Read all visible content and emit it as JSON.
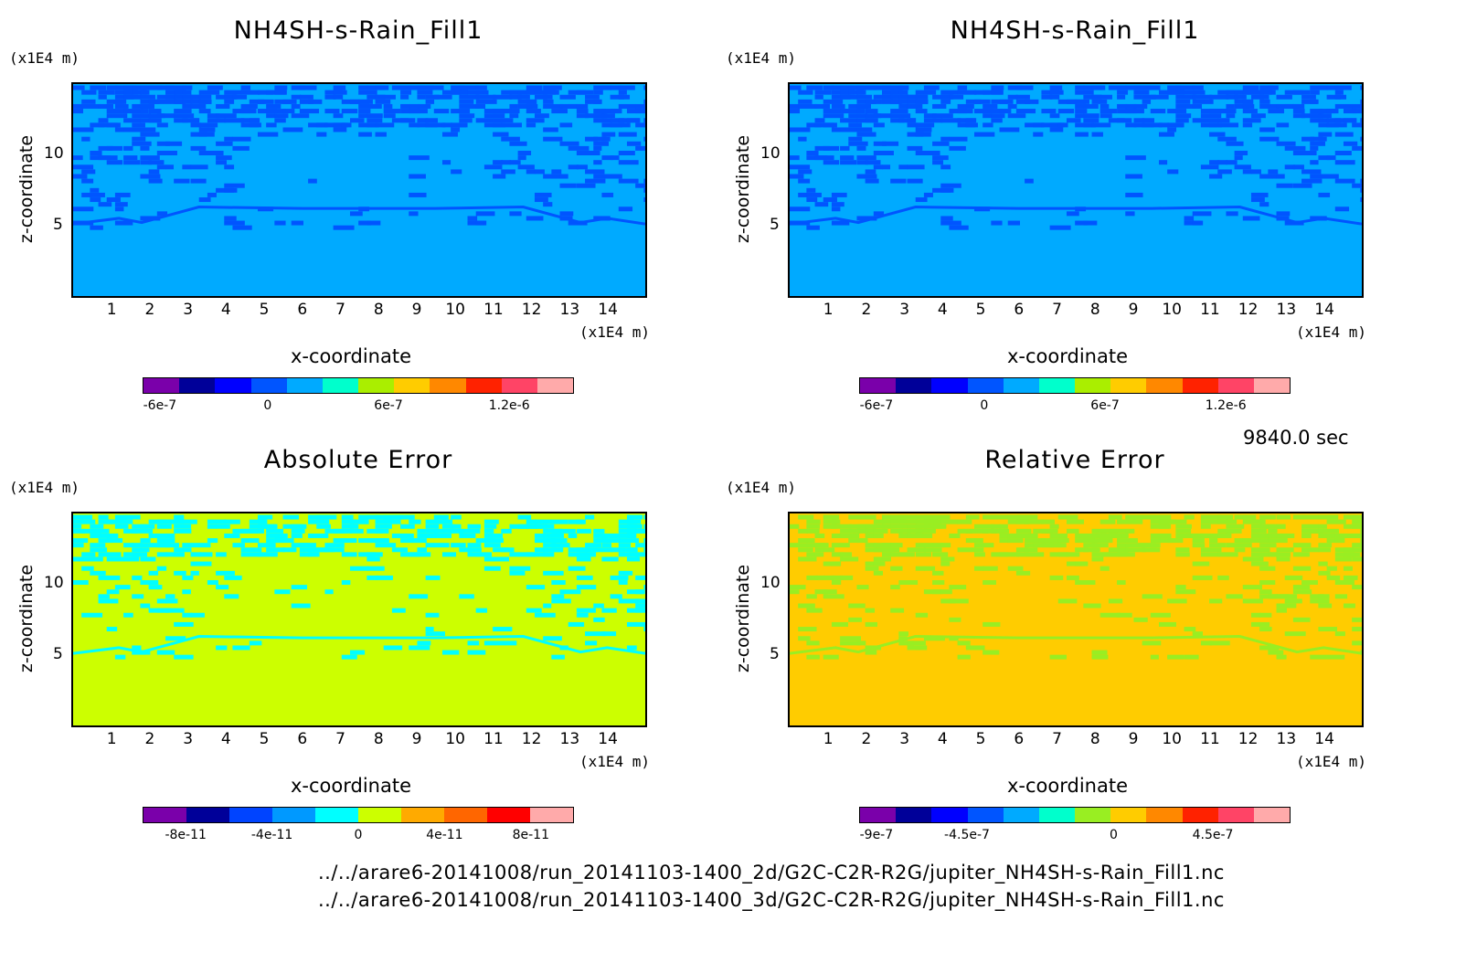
{
  "panels": [
    {
      "title": "NH4SH-s-Rain_Fill1",
      "y_unit": "(x1E4 m)",
      "x_unit": "(x1E4 m)",
      "ylabel": "z-coordinate",
      "xlabel": "x-coordinate",
      "colorbar_ticks": [
        "-6e-7",
        "0",
        "6e-7",
        "1.2e-6"
      ],
      "background": "#00aaff",
      "pattern_color": "#0055ff"
    },
    {
      "title": "NH4SH-s-Rain_Fill1",
      "y_unit": "(x1E4 m)",
      "x_unit": "(x1E4 m)",
      "ylabel": "z-coordinate",
      "xlabel": "x-coordinate",
      "colorbar_ticks": [
        "-6e-7",
        "0",
        "6e-7",
        "1.2e-6"
      ],
      "background": "#00aaff",
      "pattern_color": "#0055ff"
    },
    {
      "title": "Absolute Error",
      "y_unit": "(x1E4 m)",
      "x_unit": "(x1E4 m)",
      "ylabel": "z-coordinate",
      "xlabel": "x-coordinate",
      "colorbar_ticks": [
        "-8e-11",
        "-4e-11",
        "0",
        "4e-11",
        "8e-11"
      ],
      "background": "#ccff00",
      "pattern_color": "#00ffff"
    },
    {
      "title": "Relative Error",
      "y_unit": "(x1E4 m)",
      "x_unit": "(x1E4 m)",
      "ylabel": "z-coordinate",
      "xlabel": "x-coordinate",
      "colorbar_ticks": [
        "-9e-7",
        "-4.5e-7",
        "0",
        "4.5e-7"
      ],
      "background": "#ffcc00",
      "pattern_color": "#99ee22"
    }
  ],
  "time_label": "9840.0 sec",
  "file_paths": [
    "../../arare6-20141008/run_20141103-1400_2d/G2C-C2R-R2G/jupiter_NH4SH-s-Rain_Fill1.nc",
    "../../arare6-20141008/run_20141103-1400_3d/G2C-C2R-R2G/jupiter_NH4SH-s-Rain_Fill1.nc"
  ],
  "chart_data": [
    {
      "type": "heatmap",
      "title": "NH4SH-s-Rain_Fill1",
      "xlabel": "x-coordinate",
      "ylabel": "z-coordinate",
      "x_unit": "(x1E4 m)",
      "y_unit": "(x1E4 m)",
      "xlim": [
        0,
        15
      ],
      "ylim": [
        0,
        15
      ],
      "x_ticks": [
        1,
        2,
        3,
        4,
        5,
        6,
        7,
        8,
        9,
        10,
        11,
        12,
        13,
        14
      ],
      "y_ticks": [
        5,
        10
      ],
      "colorbar_ticks": [
        "-6e-7",
        "0",
        "6e-7",
        "1.2e-6"
      ],
      "colorbar_colors": [
        "#7a00aa",
        "#000099",
        "#0000ff",
        "#0055ff",
        "#00aaff",
        "#00ffcc",
        "#aaee00",
        "#ffcc00",
        "#ff8800",
        "#ff2200",
        "#ff4466",
        "#ffaaaa"
      ]
    },
    {
      "type": "heatmap",
      "title": "NH4SH-s-Rain_Fill1",
      "xlabel": "x-coordinate",
      "ylabel": "z-coordinate",
      "x_unit": "(x1E4 m)",
      "y_unit": "(x1E4 m)",
      "xlim": [
        0,
        15
      ],
      "ylim": [
        0,
        15
      ],
      "x_ticks": [
        1,
        2,
        3,
        4,
        5,
        6,
        7,
        8,
        9,
        10,
        11,
        12,
        13,
        14
      ],
      "y_ticks": [
        5,
        10
      ],
      "colorbar_ticks": [
        "-6e-7",
        "0",
        "6e-7",
        "1.2e-6"
      ],
      "colorbar_colors": [
        "#7a00aa",
        "#000099",
        "#0000ff",
        "#0055ff",
        "#00aaff",
        "#00ffcc",
        "#aaee00",
        "#ffcc00",
        "#ff8800",
        "#ff2200",
        "#ff4466",
        "#ffaaaa"
      ]
    },
    {
      "type": "heatmap",
      "title": "Absolute Error",
      "xlabel": "x-coordinate",
      "ylabel": "z-coordinate",
      "x_unit": "(x1E4 m)",
      "y_unit": "(x1E4 m)",
      "xlim": [
        0,
        15
      ],
      "ylim": [
        0,
        15
      ],
      "x_ticks": [
        1,
        2,
        3,
        4,
        5,
        6,
        7,
        8,
        9,
        10,
        11,
        12,
        13,
        14
      ],
      "y_ticks": [
        5,
        10
      ],
      "colorbar_ticks": [
        "-8e-11",
        "-4e-11",
        "0",
        "4e-11",
        "8e-11"
      ],
      "colorbar_colors": [
        "#7a00aa",
        "#000099",
        "#0044ff",
        "#0099ff",
        "#00ffff",
        "#ccff00",
        "#ffaa00",
        "#ff6600",
        "#ff0000",
        "#ffaaaa"
      ]
    },
    {
      "type": "heatmap",
      "title": "Relative Error",
      "xlabel": "x-coordinate",
      "ylabel": "z-coordinate",
      "x_unit": "(x1E4 m)",
      "y_unit": "(x1E4 m)",
      "xlim": [
        0,
        15
      ],
      "ylim": [
        0,
        15
      ],
      "x_ticks": [
        1,
        2,
        3,
        4,
        5,
        6,
        7,
        8,
        9,
        10,
        11,
        12,
        13,
        14
      ],
      "y_ticks": [
        5,
        10
      ],
      "colorbar_ticks": [
        "-9e-7",
        "-4.5e-7",
        "0",
        "4.5e-7"
      ],
      "colorbar_colors": [
        "#7a00aa",
        "#000099",
        "#0000ff",
        "#0055ff",
        "#00aaff",
        "#00ffcc",
        "#99ee22",
        "#ffcc00",
        "#ff8800",
        "#ff2200",
        "#ff4466",
        "#ffaaaa"
      ]
    }
  ]
}
